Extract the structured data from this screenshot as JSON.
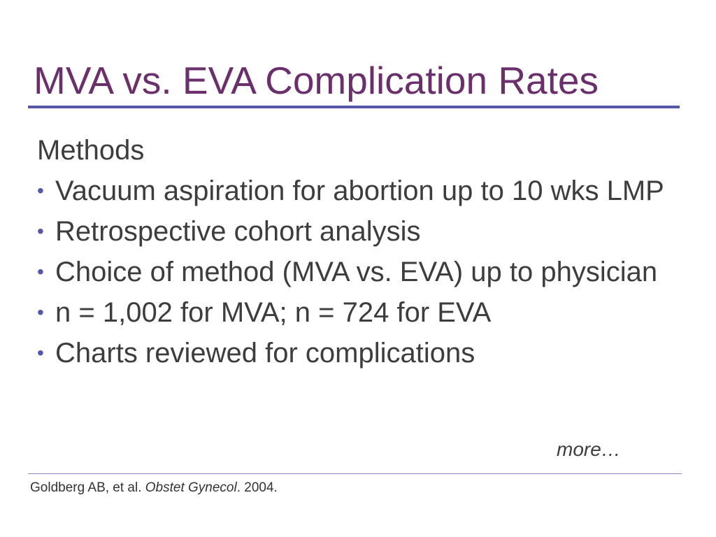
{
  "slide": {
    "title": "MVA vs. EVA Complication Rates",
    "section_heading": "Methods",
    "bullets": [
      "Vacuum aspiration for abortion up to 10 wks LMP",
      "Retrospective cohort analysis",
      "Choice of method (MVA vs. EVA) up to physician",
      "n = 1,002 for MVA; n = 724 for EVA",
      "Charts reviewed for complications"
    ],
    "bullet_glyph": "•",
    "more_text": "more…"
  },
  "citation": {
    "authors": "Goldberg AB, et al. ",
    "journal": "Obstet Gynecol",
    "year": ". 2004."
  },
  "colors": {
    "title": "#6b2f6b",
    "rule": "#5656a8",
    "body_text": "#3d3d3d"
  }
}
